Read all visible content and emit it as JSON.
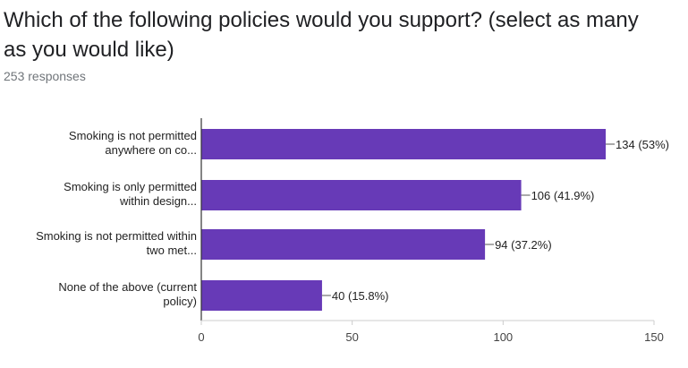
{
  "question": {
    "title": "Which of the following policies would you support? (select as many as you would like)",
    "responses": "253 responses"
  },
  "colors": {
    "bar": "#673ab7",
    "axis": "#333333",
    "grid": "#cccccc"
  },
  "chart_data": {
    "type": "bar",
    "orientation": "horizontal",
    "title": "",
    "categories": [
      [
        "Smoking is not permitted",
        "anywhere on co..."
      ],
      [
        "Smoking is only permitted",
        "within design..."
      ],
      [
        "Smoking is not permitted within",
        "two met..."
      ],
      [
        "None of the above (current",
        "policy)"
      ]
    ],
    "values": [
      134,
      106,
      94,
      40
    ],
    "data_labels": [
      "134 (53%)",
      "106 (41.9%)",
      "94 (37.2%)",
      "40 (15.8%)"
    ],
    "xlim": [
      0,
      150
    ],
    "xticks": [
      0,
      50,
      100,
      150
    ],
    "grid": false,
    "legend": "none"
  }
}
